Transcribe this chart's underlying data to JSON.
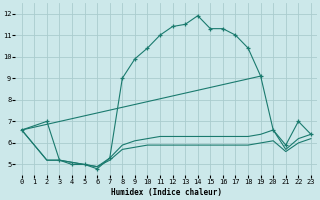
{
  "xlabel": "Humidex (Indice chaleur)",
  "xlim": [
    -0.5,
    23.5
  ],
  "ylim": [
    4.5,
    12.5
  ],
  "xticks": [
    0,
    1,
    2,
    3,
    4,
    5,
    6,
    7,
    8,
    9,
    10,
    11,
    12,
    13,
    14,
    15,
    16,
    17,
    18,
    19,
    20,
    21,
    22,
    23
  ],
  "yticks": [
    5,
    6,
    7,
    8,
    9,
    10,
    11,
    12
  ],
  "bg_color": "#cce8ea",
  "grid_color": "#aaccce",
  "line_color": "#1a7a6e",
  "lines": [
    {
      "x": [
        0,
        2,
        3,
        4,
        5,
        6,
        7,
        8,
        9,
        10,
        11,
        12,
        13,
        14,
        15,
        16,
        17,
        18,
        19,
        20,
        21,
        22,
        23
      ],
      "y": [
        6.6,
        7.0,
        5.2,
        5.0,
        5.0,
        4.8,
        5.3,
        9.0,
        9.9,
        10.4,
        11.0,
        11.4,
        11.5,
        11.9,
        11.3,
        11.3,
        11.0,
        10.4,
        9.1,
        6.6,
        5.9,
        7.0,
        6.4
      ],
      "marker": "+"
    },
    {
      "x": [
        0,
        19
      ],
      "y": [
        6.6,
        9.1
      ],
      "marker": null
    },
    {
      "x": [
        0,
        2,
        3,
        4,
        5,
        6,
        7,
        8,
        9,
        10,
        11,
        12,
        13,
        14,
        15,
        16,
        17,
        18,
        19,
        20,
        21,
        22,
        23
      ],
      "y": [
        6.6,
        5.2,
        5.2,
        5.1,
        5.0,
        4.9,
        5.2,
        5.7,
        5.8,
        5.9,
        5.9,
        5.9,
        5.9,
        5.9,
        5.9,
        5.9,
        5.9,
        5.9,
        6.0,
        6.1,
        5.6,
        6.0,
        6.2
      ],
      "marker": null
    },
    {
      "x": [
        0,
        2,
        3,
        4,
        5,
        6,
        7,
        8,
        9,
        10,
        11,
        12,
        13,
        14,
        15,
        16,
        17,
        18,
        19,
        20,
        21,
        22,
        23
      ],
      "y": [
        6.6,
        5.2,
        5.2,
        5.1,
        5.0,
        4.9,
        5.3,
        5.9,
        6.1,
        6.2,
        6.3,
        6.3,
        6.3,
        6.3,
        6.3,
        6.3,
        6.3,
        6.3,
        6.4,
        6.6,
        5.7,
        6.2,
        6.4
      ],
      "marker": null
    }
  ]
}
